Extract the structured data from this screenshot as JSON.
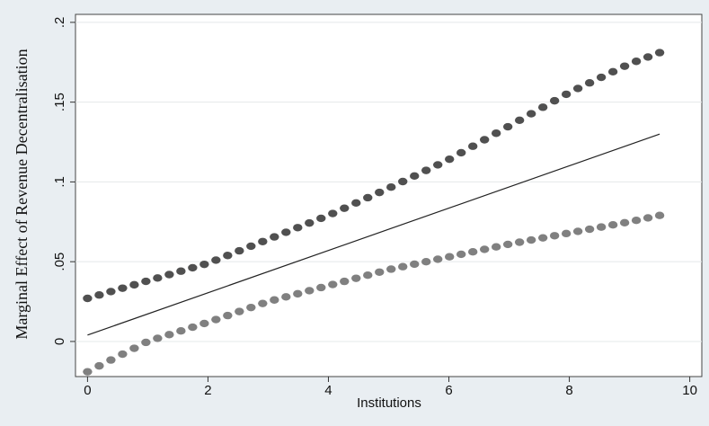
{
  "chart_data": {
    "type": "line",
    "title": "",
    "xlabel": "Institutions",
    "ylabel": "Marginal Effect of Revenue Decentralisation",
    "xlim": [
      -0.2,
      10.2
    ],
    "ylim": [
      -0.022,
      0.205
    ],
    "x_ticks": [
      0,
      2,
      4,
      6,
      8,
      10
    ],
    "x_tick_labels": [
      "0",
      "2",
      "4",
      "6",
      "8",
      "10"
    ],
    "y_ticks": [
      0,
      0.05,
      0.1,
      0.15,
      0.2
    ],
    "y_tick_labels": [
      "0",
      ".05",
      ".1",
      ".15",
      ".2"
    ],
    "grid": true,
    "legend": "none",
    "series": [
      {
        "style": "dotted",
        "color": "#505050",
        "x": [
          0,
          9.5
        ],
        "y": [
          0.027,
          0.18
        ],
        "curve": [
          [
            0,
            0.027
          ],
          [
            1,
            0.038
          ],
          [
            2,
            0.049
          ],
          [
            3,
            0.064
          ],
          [
            4,
            0.079
          ],
          [
            5,
            0.096
          ],
          [
            6,
            0.114
          ],
          [
            7,
            0.135
          ],
          [
            8,
            0.156
          ],
          [
            9,
            0.174
          ],
          [
            9.5,
            0.181
          ]
        ]
      },
      {
        "style": "solid",
        "color": "#222222",
        "x": [
          0,
          9.5
        ],
        "y": [
          0.004,
          0.13
        ],
        "curve": [
          [
            0,
            0.004
          ],
          [
            9.5,
            0.13
          ]
        ]
      },
      {
        "style": "dotted",
        "color": "#808080",
        "x": [
          0,
          9.5
        ],
        "y": [
          -0.019,
          0.079
        ],
        "curve": [
          [
            0,
            -0.019
          ],
          [
            1,
            0.0
          ],
          [
            2,
            0.012
          ],
          [
            3,
            0.025
          ],
          [
            4,
            0.035
          ],
          [
            5,
            0.045
          ],
          [
            6,
            0.053
          ],
          [
            7,
            0.061
          ],
          [
            8,
            0.068
          ],
          [
            9,
            0.075
          ],
          [
            9.5,
            0.079
          ]
        ]
      }
    ]
  }
}
